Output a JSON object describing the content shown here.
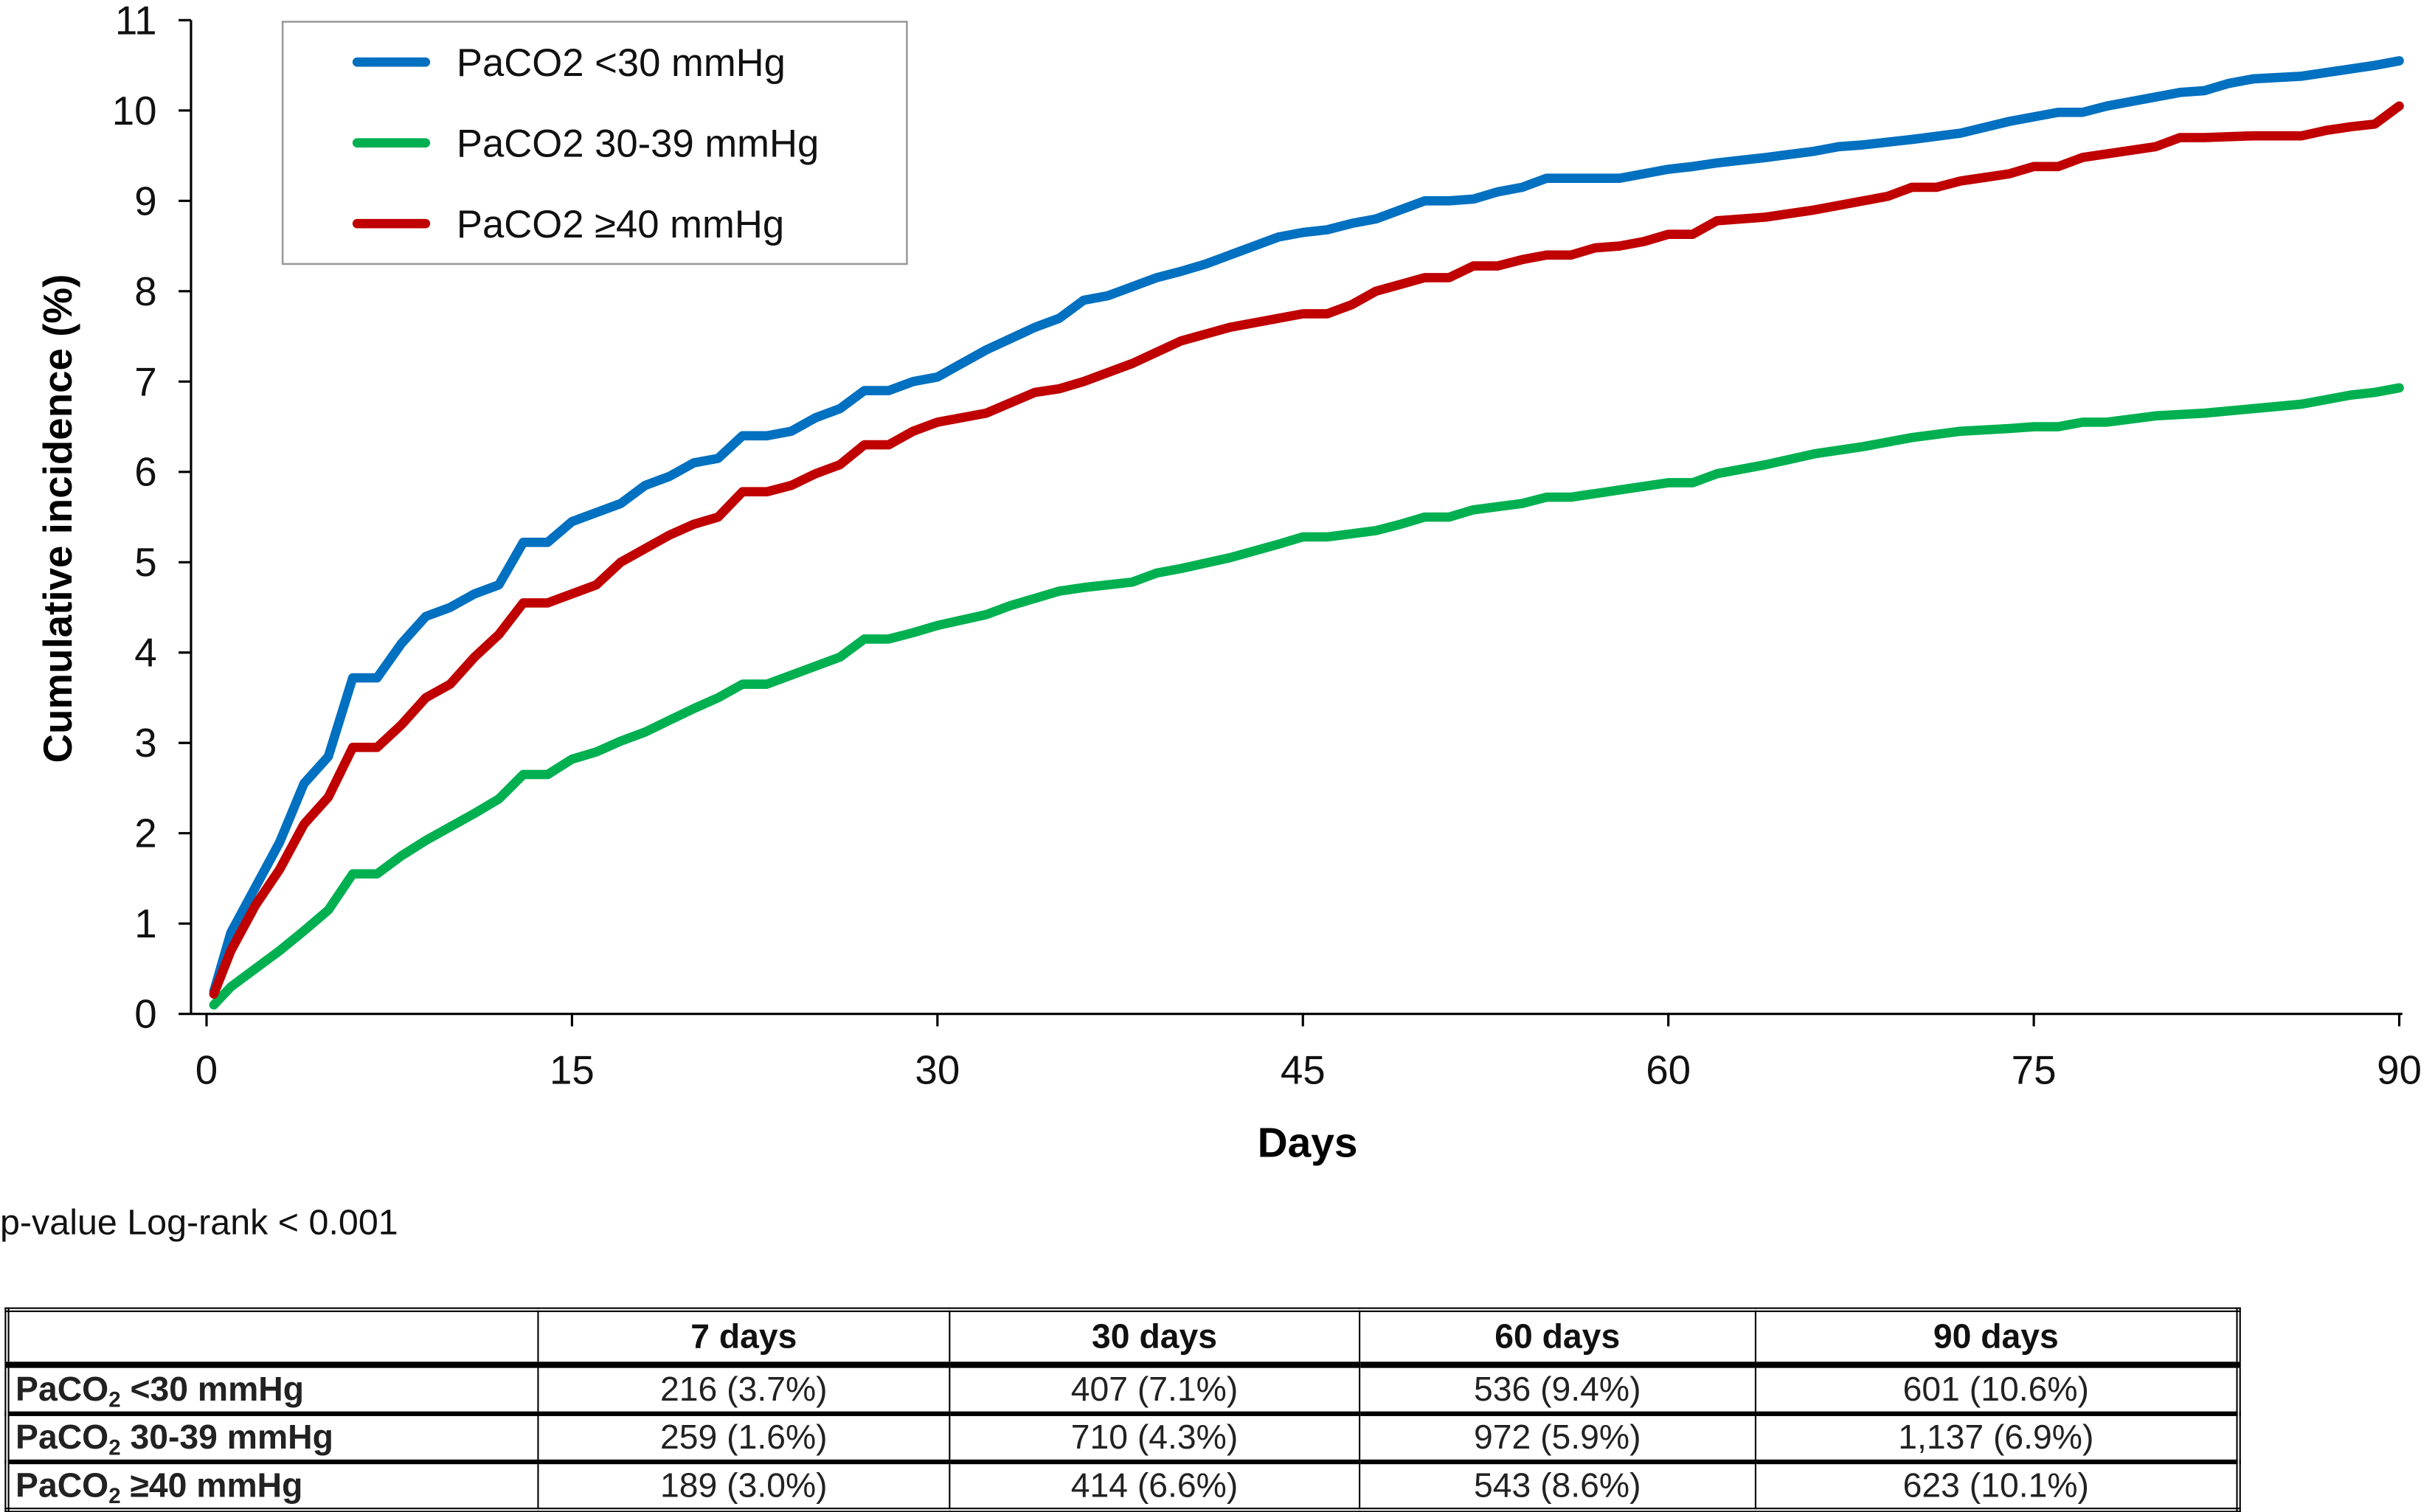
{
  "chart_data": {
    "type": "line",
    "xlabel": "Days",
    "ylabel": "Cumulative incidence (%)",
    "xlim": [
      0,
      90
    ],
    "ylim": [
      0,
      11
    ],
    "xticks": [
      0,
      15,
      30,
      45,
      60,
      75,
      90
    ],
    "yticks": [
      0,
      1,
      2,
      3,
      4,
      5,
      6,
      7,
      8,
      9,
      10,
      11
    ],
    "grid": false,
    "legend_position": "top-left",
    "series": [
      {
        "name": "PaCO2 <30 mmHg",
        "color": "#0070C0",
        "points": [
          [
            0.3,
            0.25
          ],
          [
            1,
            0.9
          ],
          [
            2,
            1.4
          ],
          [
            3,
            1.9
          ],
          [
            4,
            2.55
          ],
          [
            5,
            2.85
          ],
          [
            6,
            3.72
          ],
          [
            7,
            3.72
          ],
          [
            8,
            4.1
          ],
          [
            9,
            4.4
          ],
          [
            10,
            4.5
          ],
          [
            11,
            4.65
          ],
          [
            12,
            4.75
          ],
          [
            13,
            5.22
          ],
          [
            14,
            5.22
          ],
          [
            15,
            5.45
          ],
          [
            16,
            5.55
          ],
          [
            17,
            5.65
          ],
          [
            18,
            5.85
          ],
          [
            19,
            5.95
          ],
          [
            20,
            6.1
          ],
          [
            21,
            6.15
          ],
          [
            22,
            6.4
          ],
          [
            23,
            6.4
          ],
          [
            24,
            6.45
          ],
          [
            25,
            6.6
          ],
          [
            26,
            6.7
          ],
          [
            27,
            6.9
          ],
          [
            28,
            6.9
          ],
          [
            29,
            7.0
          ],
          [
            30,
            7.05
          ],
          [
            32,
            7.35
          ],
          [
            34,
            7.6
          ],
          [
            35,
            7.7
          ],
          [
            36,
            7.9
          ],
          [
            37,
            7.95
          ],
          [
            38,
            8.05
          ],
          [
            39,
            8.15
          ],
          [
            40,
            8.22
          ],
          [
            41,
            8.3
          ],
          [
            42,
            8.4
          ],
          [
            43,
            8.5
          ],
          [
            44,
            8.6
          ],
          [
            45,
            8.65
          ],
          [
            46,
            8.68
          ],
          [
            47,
            8.75
          ],
          [
            48,
            8.8
          ],
          [
            49,
            8.9
          ],
          [
            50,
            9.0
          ],
          [
            51,
            9.0
          ],
          [
            52,
            9.02
          ],
          [
            53,
            9.1
          ],
          [
            54,
            9.15
          ],
          [
            55,
            9.25
          ],
          [
            56,
            9.25
          ],
          [
            58,
            9.25
          ],
          [
            60,
            9.35
          ],
          [
            61,
            9.38
          ],
          [
            62,
            9.42
          ],
          [
            64,
            9.48
          ],
          [
            66,
            9.55
          ],
          [
            67,
            9.6
          ],
          [
            68,
            9.62
          ],
          [
            70,
            9.68
          ],
          [
            72,
            9.75
          ],
          [
            74,
            9.88
          ],
          [
            75,
            9.93
          ],
          [
            76,
            9.98
          ],
          [
            77,
            9.98
          ],
          [
            78,
            10.05
          ],
          [
            80,
            10.15
          ],
          [
            81,
            10.2
          ],
          [
            82,
            10.22
          ],
          [
            83,
            10.3
          ],
          [
            84,
            10.35
          ],
          [
            86,
            10.38
          ],
          [
            87,
            10.42
          ],
          [
            88,
            10.46
          ],
          [
            89,
            10.5
          ],
          [
            90,
            10.55
          ]
        ]
      },
      {
        "name": "PaCO2 30-39 mmHg",
        "color": "#00B050",
        "points": [
          [
            0.3,
            0.1
          ],
          [
            1,
            0.3
          ],
          [
            2,
            0.5
          ],
          [
            3,
            0.7
          ],
          [
            4,
            0.92
          ],
          [
            5,
            1.15
          ],
          [
            6,
            1.55
          ],
          [
            7,
            1.55
          ],
          [
            8,
            1.75
          ],
          [
            9,
            1.92
          ],
          [
            10,
            2.07
          ],
          [
            11,
            2.22
          ],
          [
            12,
            2.38
          ],
          [
            13,
            2.65
          ],
          [
            14,
            2.65
          ],
          [
            15,
            2.82
          ],
          [
            16,
            2.9
          ],
          [
            17,
            3.02
          ],
          [
            18,
            3.12
          ],
          [
            19,
            3.25
          ],
          [
            20,
            3.38
          ],
          [
            21,
            3.5
          ],
          [
            22,
            3.65
          ],
          [
            23,
            3.65
          ],
          [
            24,
            3.75
          ],
          [
            25,
            3.85
          ],
          [
            26,
            3.95
          ],
          [
            27,
            4.15
          ],
          [
            28,
            4.15
          ],
          [
            29,
            4.22
          ],
          [
            30,
            4.3
          ],
          [
            32,
            4.42
          ],
          [
            33,
            4.52
          ],
          [
            34,
            4.6
          ],
          [
            35,
            4.68
          ],
          [
            36,
            4.72
          ],
          [
            38,
            4.78
          ],
          [
            39,
            4.88
          ],
          [
            40,
            4.93
          ],
          [
            42,
            5.05
          ],
          [
            44,
            5.2
          ],
          [
            45,
            5.28
          ],
          [
            46,
            5.28
          ],
          [
            48,
            5.35
          ],
          [
            49,
            5.42
          ],
          [
            50,
            5.5
          ],
          [
            51,
            5.5
          ],
          [
            52,
            5.58
          ],
          [
            54,
            5.65
          ],
          [
            55,
            5.72
          ],
          [
            56,
            5.72
          ],
          [
            58,
            5.8
          ],
          [
            60,
            5.88
          ],
          [
            61,
            5.88
          ],
          [
            62,
            5.98
          ],
          [
            64,
            6.08
          ],
          [
            66,
            6.2
          ],
          [
            68,
            6.28
          ],
          [
            70,
            6.38
          ],
          [
            72,
            6.45
          ],
          [
            74,
            6.48
          ],
          [
            75,
            6.5
          ],
          [
            76,
            6.5
          ],
          [
            77,
            6.55
          ],
          [
            78,
            6.55
          ],
          [
            80,
            6.62
          ],
          [
            82,
            6.65
          ],
          [
            84,
            6.7
          ],
          [
            86,
            6.75
          ],
          [
            87,
            6.8
          ],
          [
            88,
            6.85
          ],
          [
            89,
            6.88
          ],
          [
            90,
            6.93
          ]
        ]
      },
      {
        "name": "PaCO2 ≥40 mmHg",
        "color": "#C00000",
        "points": [
          [
            0.3,
            0.22
          ],
          [
            1,
            0.7
          ],
          [
            2,
            1.2
          ],
          [
            3,
            1.6
          ],
          [
            4,
            2.1
          ],
          [
            5,
            2.4
          ],
          [
            6,
            2.95
          ],
          [
            7,
            2.95
          ],
          [
            8,
            3.2
          ],
          [
            9,
            3.5
          ],
          [
            10,
            3.65
          ],
          [
            11,
            3.95
          ],
          [
            12,
            4.2
          ],
          [
            13,
            4.55
          ],
          [
            14,
            4.55
          ],
          [
            15,
            4.65
          ],
          [
            16,
            4.75
          ],
          [
            17,
            5.0
          ],
          [
            18,
            5.15
          ],
          [
            19,
            5.3
          ],
          [
            20,
            5.42
          ],
          [
            21,
            5.5
          ],
          [
            22,
            5.78
          ],
          [
            23,
            5.78
          ],
          [
            24,
            5.85
          ],
          [
            25,
            5.98
          ],
          [
            26,
            6.08
          ],
          [
            27,
            6.3
          ],
          [
            28,
            6.3
          ],
          [
            29,
            6.45
          ],
          [
            30,
            6.55
          ],
          [
            32,
            6.65
          ],
          [
            34,
            6.88
          ],
          [
            35,
            6.92
          ],
          [
            36,
            7.0
          ],
          [
            38,
            7.2
          ],
          [
            40,
            7.45
          ],
          [
            42,
            7.6
          ],
          [
            44,
            7.7
          ],
          [
            45,
            7.75
          ],
          [
            46,
            7.75
          ],
          [
            47,
            7.85
          ],
          [
            48,
            8.0
          ],
          [
            50,
            8.15
          ],
          [
            51,
            8.15
          ],
          [
            52,
            8.28
          ],
          [
            53,
            8.28
          ],
          [
            54,
            8.35
          ],
          [
            55,
            8.4
          ],
          [
            56,
            8.4
          ],
          [
            57,
            8.48
          ],
          [
            58,
            8.5
          ],
          [
            59,
            8.55
          ],
          [
            60,
            8.63
          ],
          [
            61,
            8.63
          ],
          [
            62,
            8.78
          ],
          [
            64,
            8.82
          ],
          [
            66,
            8.9
          ],
          [
            68,
            9.0
          ],
          [
            69,
            9.05
          ],
          [
            70,
            9.15
          ],
          [
            71,
            9.15
          ],
          [
            72,
            9.22
          ],
          [
            74,
            9.3
          ],
          [
            75,
            9.38
          ],
          [
            76,
            9.38
          ],
          [
            77,
            9.48
          ],
          [
            78,
            9.52
          ],
          [
            80,
            9.6
          ],
          [
            81,
            9.7
          ],
          [
            82,
            9.7
          ],
          [
            84,
            9.72
          ],
          [
            86,
            9.72
          ],
          [
            87,
            9.78
          ],
          [
            88,
            9.82
          ],
          [
            89,
            9.85
          ],
          [
            90,
            10.05
          ]
        ]
      }
    ]
  },
  "annotation": "p-value Log-rank < 0.001",
  "table": {
    "headers": [
      "",
      "7 days",
      "30 days",
      "60 days",
      "90 days"
    ],
    "rows": [
      {
        "label_main": "PaCO",
        "label_sub": "2",
        "label_rest": " <30 mmHg",
        "cells": [
          "216 (3.7%)",
          "407 (7.1%)",
          "536 (9.4%)",
          "601 (10.6%)"
        ]
      },
      {
        "label_main": "PaCO",
        "label_sub": "2",
        "label_rest": " 30-39 mmHg",
        "cells": [
          "259 (1.6%)",
          "710 (4.3%)",
          "972 (5.9%)",
          "1,137 (6.9%)"
        ]
      },
      {
        "label_main": "PaCO",
        "label_sub": "2",
        "label_rest": " ≥40 mmHg",
        "cells": [
          "189 (3.0%)",
          "414 (6.6%)",
          "543 (8.6%)",
          "623 (10.1%)"
        ]
      }
    ]
  }
}
